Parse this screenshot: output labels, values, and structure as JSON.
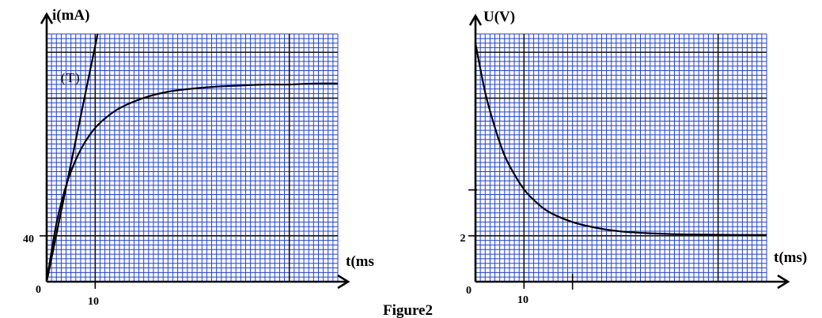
{
  "figure_caption": "Figure2",
  "chart_data": [
    {
      "type": "line",
      "title": "",
      "xlabel": "t(ms",
      "ylabel": "i(mA)",
      "x_tick_labels": [
        "0",
        "10"
      ],
      "y_tick_labels": [
        "0",
        "40"
      ],
      "xlim": [
        0,
        60
      ],
      "ylim": [
        0,
        240
      ],
      "grid": true,
      "annotation": "(T)",
      "series": [
        {
          "x": [
            0,
            2,
            4,
            6,
            8,
            10,
            12,
            15,
            20,
            25,
            30,
            35,
            40,
            45,
            50,
            55,
            60
          ],
          "values": [
            0,
            56,
            93,
            118,
            136,
            149,
            158,
            168,
            178,
            184,
            187,
            189,
            190,
            191,
            191,
            192,
            192
          ]
        },
        {
          "x": [
            0,
            10.5
          ],
          "values": [
            0,
            240
          ]
        }
      ]
    },
    {
      "type": "line",
      "title": "",
      "xlabel": "t(ms)",
      "ylabel": "U(V)",
      "x_tick_labels": [
        "0",
        "10"
      ],
      "y_tick_labels": [
        "2"
      ],
      "xlim": [
        0,
        60
      ],
      "ylim": [
        0,
        10.6
      ],
      "grid": true,
      "series": [
        {
          "x": [
            0,
            2,
            4,
            6,
            8,
            10,
            12,
            15,
            20,
            25,
            30,
            35,
            40,
            45,
            50,
            55,
            60
          ],
          "values": [
            10.2,
            8.1,
            6.6,
            5.4,
            4.6,
            3.95,
            3.5,
            3.0,
            2.55,
            2.3,
            2.15,
            2.08,
            2.04,
            2.02,
            2.01,
            2.0,
            2.0
          ]
        }
      ]
    }
  ]
}
